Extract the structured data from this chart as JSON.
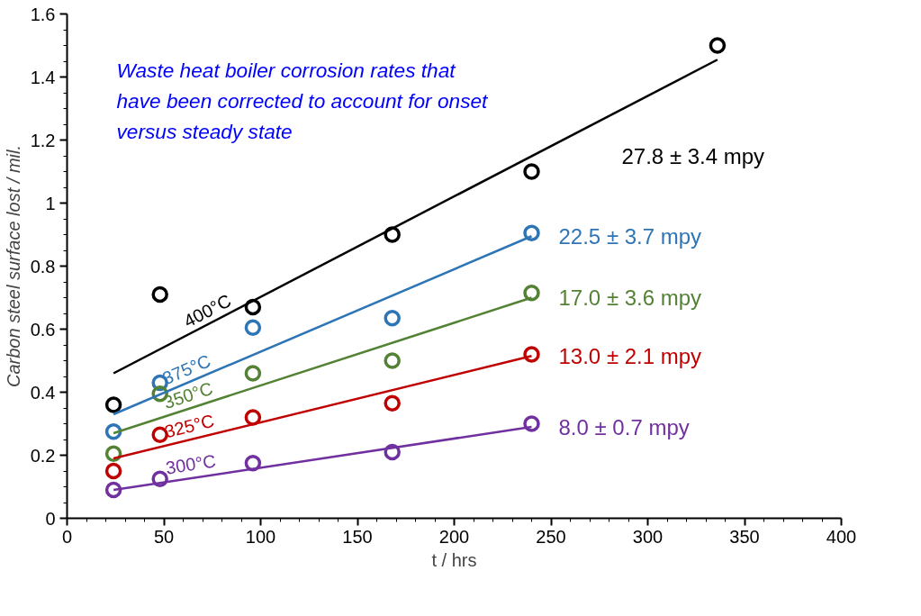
{
  "chart_data": {
    "type": "scatter",
    "xlabel": "t / hrs",
    "ylabel": "Carbon steel surface lost / mil.",
    "xlim": [
      0,
      400
    ],
    "xticks": [
      0,
      50,
      100,
      150,
      200,
      250,
      300,
      350,
      400
    ],
    "ylim": [
      0,
      1.6
    ],
    "yticks": [
      0,
      0.2,
      0.4,
      0.6,
      0.8,
      1,
      1.2,
      1.4,
      1.6
    ],
    "grid": false,
    "marker": "circle",
    "series": [
      {
        "color": "#000000",
        "x": [
          24,
          48,
          96,
          168,
          240,
          336
        ],
        "values": [
          0.36,
          0.71,
          0.67,
          0.9,
          1.1,
          1.5
        ]
      },
      {
        "color": "#2e75b6",
        "x": [
          24,
          48,
          96,
          168,
          240
        ],
        "values": [
          0.275,
          0.43,
          0.605,
          0.635,
          0.905
        ]
      },
      {
        "color": "#548235",
        "x": [
          24,
          48,
          96,
          168,
          240
        ],
        "values": [
          0.205,
          0.395,
          0.46,
          0.5,
          0.715
        ]
      },
      {
        "color": "#c00000",
        "x": [
          24,
          48,
          96,
          168,
          240
        ],
        "values": [
          0.15,
          0.265,
          0.32,
          0.365,
          0.52
        ]
      },
      {
        "color": "#7030a0",
        "x": [
          24,
          48,
          96,
          168,
          240
        ],
        "values": [
          0.09,
          0.125,
          0.175,
          0.21,
          0.3
        ]
      },
      {
        "type": "line",
        "marker": "none",
        "name": "400°C",
        "color": "#000000",
        "x": [
          24,
          336
        ],
        "values": [
          0.46,
          1.455
        ]
      },
      {
        "type": "line",
        "marker": "none",
        "name": "375°C",
        "color": "#2e75b6",
        "x": [
          24,
          240
        ],
        "values": [
          0.33,
          0.895
        ]
      },
      {
        "type": "line",
        "marker": "none",
        "name": "350°C",
        "color": "#548235",
        "x": [
          24,
          240
        ],
        "values": [
          0.27,
          0.7
        ]
      },
      {
        "type": "line",
        "marker": "none",
        "name": "325°C",
        "color": "#c00000",
        "x": [
          24,
          240
        ],
        "values": [
          0.19,
          0.515
        ]
      },
      {
        "type": "line",
        "marker": "none",
        "name": "300°C",
        "color": "#7030a0",
        "x": [
          24,
          240
        ],
        "values": [
          0.09,
          0.29
        ]
      }
    ],
    "annotations": [
      "Waste heat boiler corrosion rates that have been corrected to account for onset versus steady state",
      "27.8 ± 3.4 mpy",
      "22.5 ± 3.7 mpy",
      "17.0 ± 3.6 mpy",
      "13.0 ± 2.1 mpy",
      "8.0 ± 0.7 mpy"
    ]
  }
}
